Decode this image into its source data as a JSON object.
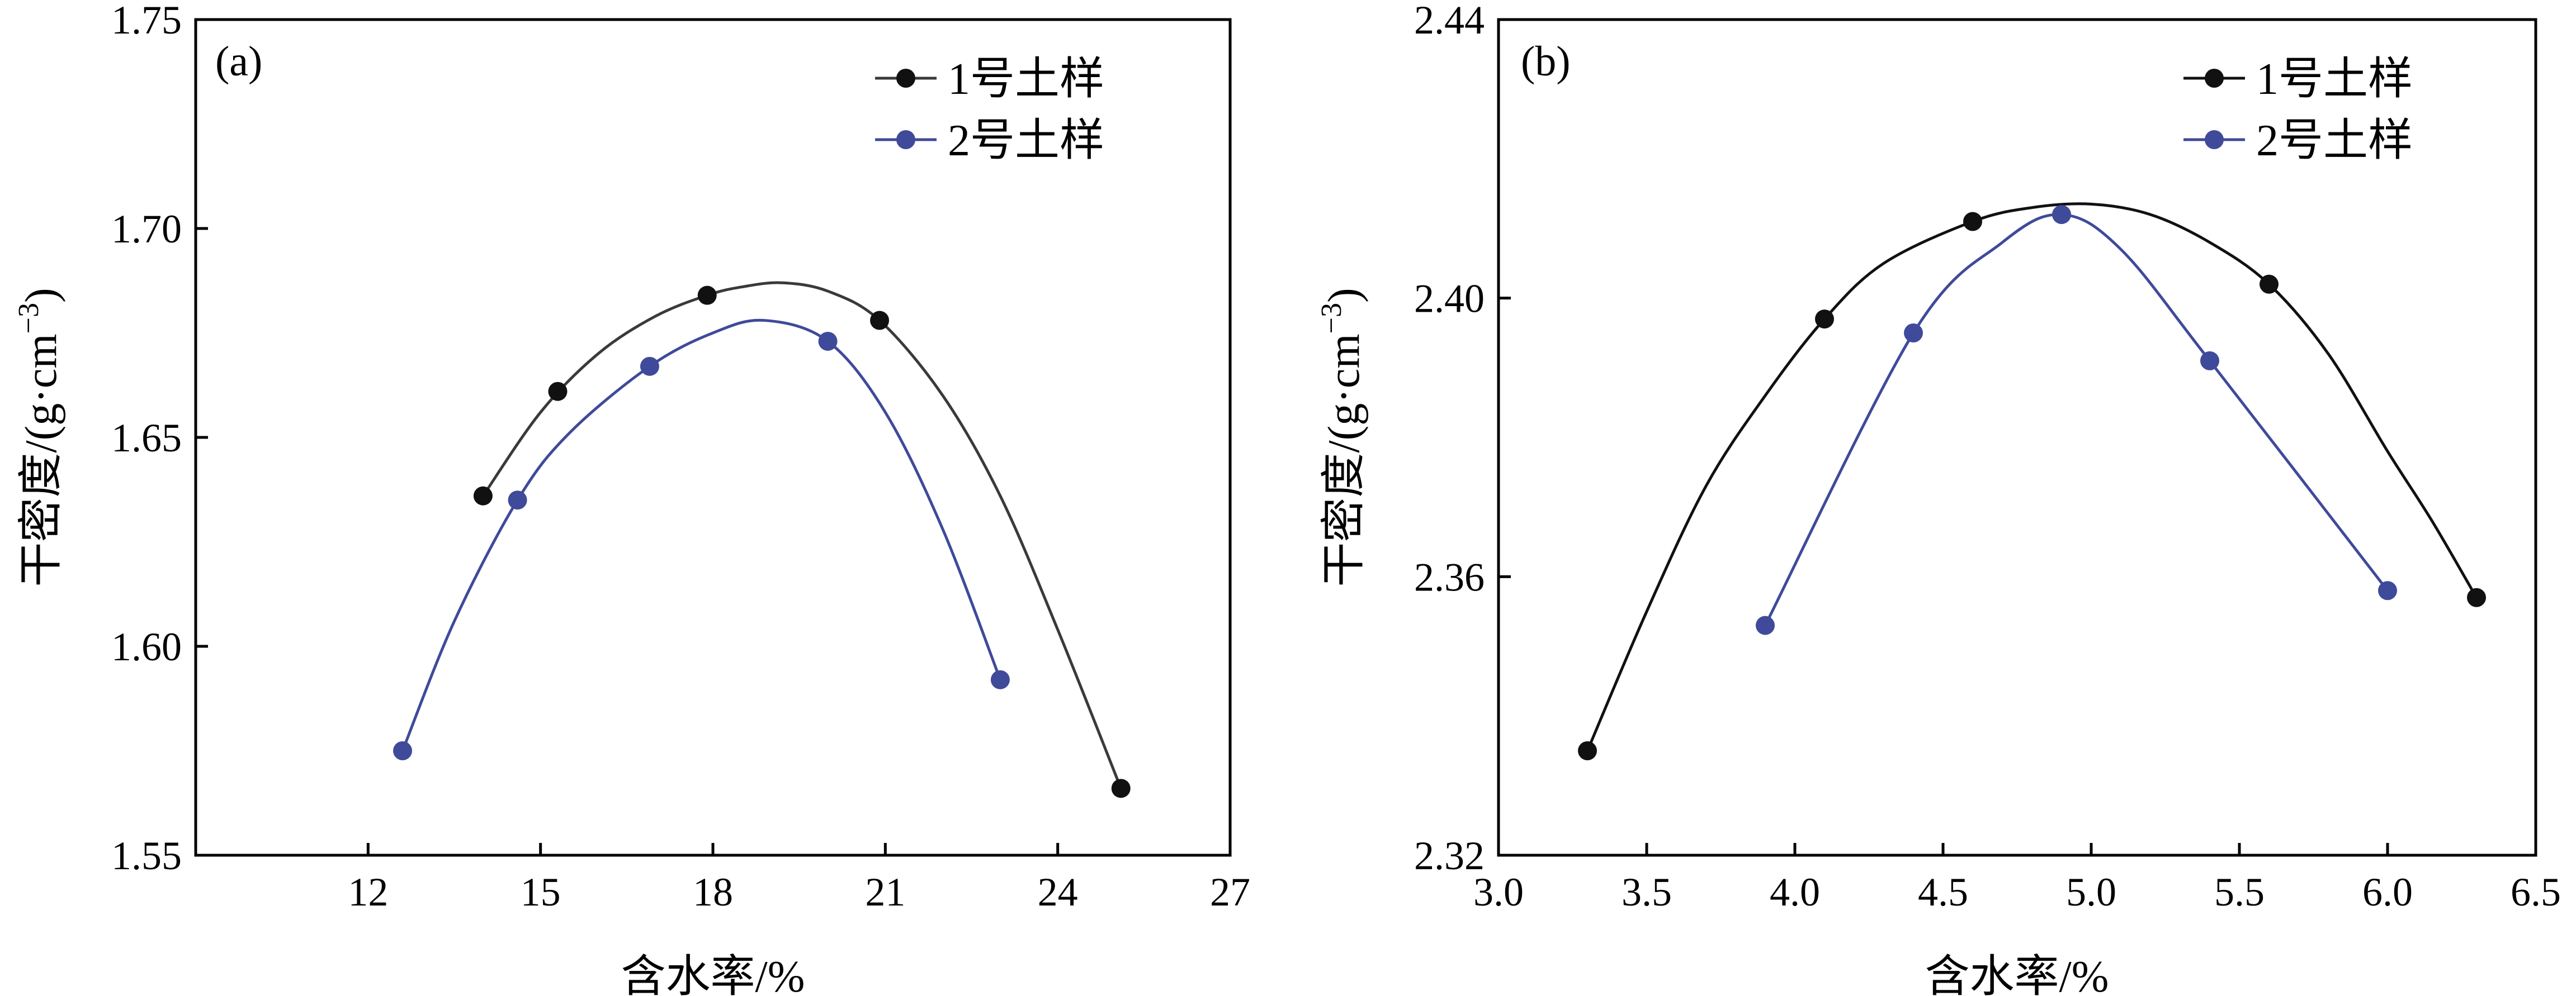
{
  "chart_data": [
    {
      "type": "line",
      "panel_label": "(a)",
      "xlabel": "含水率/%",
      "ylabel": "干密度/(g·cm",
      "ylabel_sup": "−3",
      "ylabel_close": ")",
      "xlim": [
        9,
        27
      ],
      "ylim": [
        1.55,
        1.75
      ],
      "xticks": [
        12,
        15,
        18,
        21,
        24,
        27
      ],
      "xtick_labels": [
        "12",
        "15",
        "18",
        "21",
        "24",
        "27"
      ],
      "yticks": [
        1.55,
        1.6,
        1.65,
        1.7,
        1.75
      ],
      "ytick_labels": [
        "1.55",
        "1.60",
        "1.65",
        "1.70",
        "1.75"
      ],
      "legend_position": "top-right",
      "series": [
        {
          "name": "1号土样",
          "color": "#3a3a3a",
          "marker_color": "#111111",
          "x": [
            14.0,
            15.3,
            17.9,
            20.9,
            25.1
          ],
          "y": [
            1.636,
            1.661,
            1.684,
            1.678,
            1.566
          ],
          "curve_x": [
            14.0,
            15.0,
            16.0,
            17.0,
            17.9,
            18.5,
            19.2,
            20.0,
            20.9,
            22.0,
            23.0,
            24.0,
            25.1
          ],
          "curve_y": [
            1.636,
            1.656,
            1.67,
            1.679,
            1.684,
            1.686,
            1.687,
            1.685,
            1.678,
            1.66,
            1.636,
            1.604,
            1.566
          ]
        },
        {
          "name": "2号土样",
          "color": "#3f4a9a",
          "marker_color": "#3f4a9a",
          "x": [
            12.6,
            14.6,
            16.9,
            20.0,
            23.0
          ],
          "y": [
            1.575,
            1.635,
            1.667,
            1.673,
            1.592
          ],
          "curve_x": [
            12.6,
            13.5,
            14.6,
            15.5,
            16.9,
            18.0,
            18.9,
            20.0,
            21.0,
            22.0,
            23.0
          ],
          "curve_y": [
            1.575,
            1.606,
            1.635,
            1.651,
            1.667,
            1.675,
            1.678,
            1.673,
            1.656,
            1.628,
            1.592
          ]
        }
      ]
    },
    {
      "type": "line",
      "panel_label": "(b)",
      "xlabel": "含水率/%",
      "ylabel": "干密度/(g·cm",
      "ylabel_sup": "−3",
      "ylabel_close": ")",
      "xlim": [
        3.0,
        6.5
      ],
      "ylim": [
        2.32,
        2.44
      ],
      "xticks": [
        3.0,
        3.5,
        4.0,
        4.5,
        5.0,
        5.5,
        6.0,
        6.5
      ],
      "xtick_labels": [
        "3.0",
        "3.5",
        "4.0",
        "4.5",
        "5.0",
        "5.5",
        "6.0",
        "6.5"
      ],
      "yticks": [
        2.32,
        2.36,
        2.4,
        2.44
      ],
      "ytick_labels": [
        "2.32",
        "2.36",
        "2.40",
        "2.44"
      ],
      "legend_position": "top-right",
      "series": [
        {
          "name": "1号土样",
          "color": "#111111",
          "marker_color": "#111111",
          "x": [
            3.3,
            4.1,
            4.6,
            5.6,
            6.3
          ],
          "y": [
            2.335,
            2.397,
            2.411,
            2.402,
            2.357
          ],
          "curve_x": [
            3.3,
            3.5,
            3.7,
            3.9,
            4.1,
            4.3,
            4.6,
            4.8,
            5.0,
            5.2,
            5.4,
            5.6,
            5.8,
            6.0,
            6.15,
            6.3
          ],
          "curve_y": [
            2.335,
            2.355,
            2.373,
            2.386,
            2.397,
            2.405,
            2.411,
            2.413,
            2.4135,
            2.412,
            2.408,
            2.402,
            2.392,
            2.378,
            2.368,
            2.357
          ],
          "curve_smooth": true
        },
        {
          "name": "2号土样",
          "color": "#3f4a9a",
          "marker_color": "#3f4a9a",
          "x": [
            3.9,
            4.4,
            4.9,
            5.4,
            6.0
          ],
          "y": [
            2.353,
            2.395,
            2.412,
            2.391,
            2.358
          ],
          "curve_x": [
            3.9,
            4.4,
            4.7,
            4.9,
            5.1,
            5.4,
            6.0
          ],
          "curve_y": [
            2.353,
            2.395,
            2.408,
            2.412,
            2.407,
            2.391,
            2.358
          ],
          "curve_smooth": true
        }
      ]
    }
  ]
}
